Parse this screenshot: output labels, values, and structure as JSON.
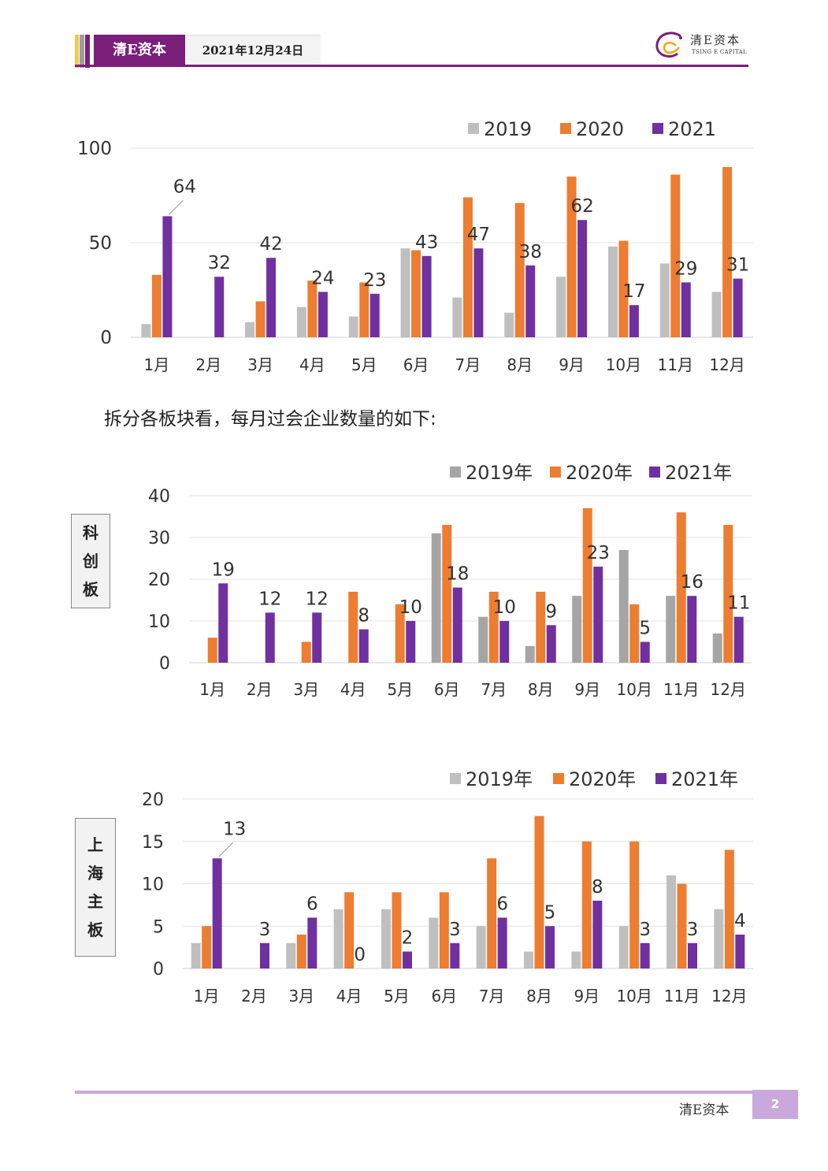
{
  "header": {
    "brand": "清E资本",
    "date": "2021年12月24日",
    "logo_cn": "清E资本",
    "logo_en": "TSING E CAPITAL"
  },
  "caption": "拆分各板块看，每月过会企业数量的如下:",
  "footer": {
    "brand": "清E资本",
    "page": "2"
  },
  "colors": {
    "s2019": "#bfbfbf",
    "s2019_dark": "#a5a5a5",
    "s2020": "#ed7d31",
    "s2021": "#7030a0",
    "brand": "#7b1f7a"
  },
  "chart_data": [
    {
      "type": "bar",
      "categories": [
        "1月",
        "2月",
        "3月",
        "4月",
        "5月",
        "6月",
        "7月",
        "8月",
        "9月",
        "10月",
        "11月",
        "12月"
      ],
      "series": [
        {
          "name": "2019",
          "values": [
            7,
            0,
            8,
            16,
            11,
            47,
            21,
            13,
            32,
            48,
            39,
            24
          ]
        },
        {
          "name": "2020",
          "values": [
            33,
            0,
            19,
            30,
            29,
            46,
            74,
            71,
            85,
            51,
            86,
            90
          ]
        },
        {
          "name": "2021",
          "values": [
            64,
            32,
            42,
            24,
            23,
            43,
            47,
            38,
            62,
            17,
            29,
            31
          ]
        }
      ],
      "data_labels_series": "2021",
      "y_ticks": [
        0,
        50,
        100
      ],
      "ylim": [
        0,
        100
      ],
      "legend": "top-right"
    },
    {
      "type": "bar",
      "board": "科创板",
      "categories": [
        "1月",
        "2月",
        "3月",
        "4月",
        "5月",
        "6月",
        "7月",
        "8月",
        "9月",
        "10月",
        "11月",
        "12月"
      ],
      "series": [
        {
          "name": "2019年",
          "values": [
            0,
            0,
            0,
            0,
            0,
            31,
            11,
            4,
            16,
            27,
            16,
            7
          ]
        },
        {
          "name": "2020年",
          "values": [
            6,
            0,
            5,
            17,
            14,
            33,
            17,
            17,
            37,
            14,
            36,
            33
          ]
        },
        {
          "name": "2021年",
          "values": [
            19,
            12,
            12,
            8,
            10,
            18,
            10,
            9,
            23,
            5,
            16,
            11
          ]
        }
      ],
      "data_labels_series": "2021年",
      "y_ticks": [
        0,
        10,
        20,
        30,
        40
      ],
      "ylim": [
        0,
        40
      ],
      "legend": "top-right"
    },
    {
      "type": "bar",
      "board": "上海主板",
      "categories": [
        "1月",
        "2月",
        "3月",
        "4月",
        "5月",
        "6月",
        "7月",
        "8月",
        "9月",
        "10月",
        "11月",
        "12月"
      ],
      "series": [
        {
          "name": "2019年",
          "values": [
            3,
            0,
            3,
            7,
            7,
            6,
            5,
            2,
            2,
            5,
            11,
            7
          ]
        },
        {
          "name": "2020年",
          "values": [
            5,
            0,
            4,
            9,
            9,
            9,
            13,
            18,
            15,
            15,
            10,
            14
          ]
        },
        {
          "name": "2021年",
          "values": [
            13,
            3,
            6,
            0,
            2,
            3,
            6,
            5,
            8,
            3,
            3,
            4
          ]
        }
      ],
      "data_labels_series": "2021年",
      "y_ticks": [
        0,
        5,
        10,
        15,
        20
      ],
      "ylim": [
        0,
        20
      ],
      "legend": "top-right"
    }
  ]
}
